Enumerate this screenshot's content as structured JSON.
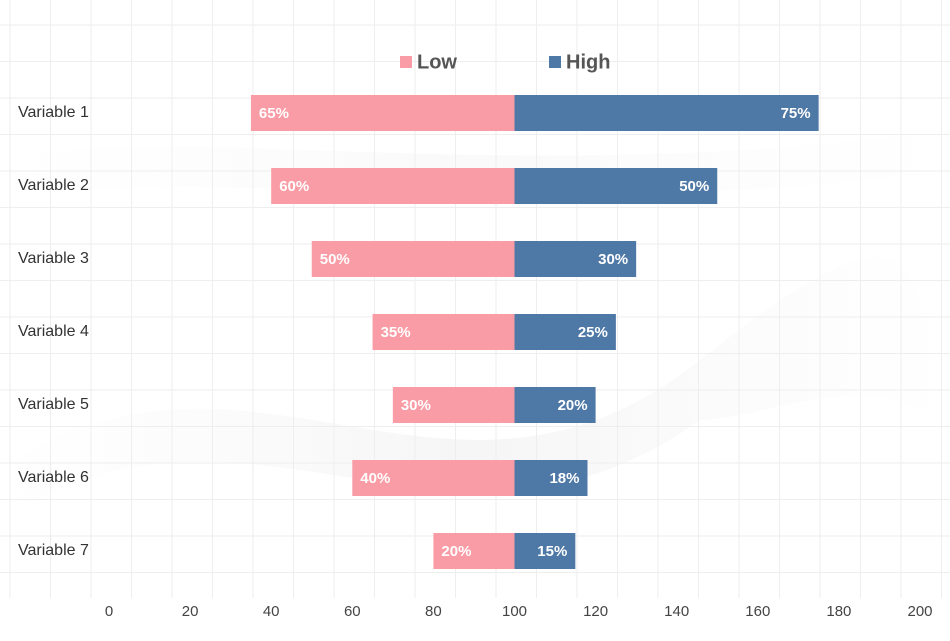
{
  "colors": {
    "low": "#fa9ca5",
    "high": "#4e78a6",
    "background": "#ffffff"
  },
  "chart_data": {
    "type": "bar",
    "orientation": "horizontal",
    "stacking": "diverging",
    "baseline": 100,
    "categories": [
      "Variable 1",
      "Variable 2",
      "Variable 3",
      "Variable 4",
      "Variable 5",
      "Variable 6",
      "Variable 7"
    ],
    "series": [
      {
        "name": "Low",
        "color": "#fa9ca5",
        "values": [
          65,
          60,
          50,
          35,
          30,
          40,
          20
        ],
        "labels": [
          "65%",
          "60%",
          "50%",
          "35%",
          "30%",
          "40%",
          "20%"
        ]
      },
      {
        "name": "High",
        "color": "#4e78a6",
        "values": [
          75,
          50,
          30,
          25,
          20,
          18,
          15
        ],
        "labels": [
          "75%",
          "50%",
          "30%",
          "25%",
          "20%",
          "18%",
          "15%"
        ]
      }
    ],
    "xlim": [
      0,
      200
    ],
    "xticks": [
      "0",
      "20",
      "40",
      "60",
      "80",
      "100",
      "120",
      "140",
      "160",
      "180",
      "200"
    ],
    "xlabel": "",
    "ylabel": "",
    "title": "",
    "legend_position": "top-center",
    "grid": true
  }
}
